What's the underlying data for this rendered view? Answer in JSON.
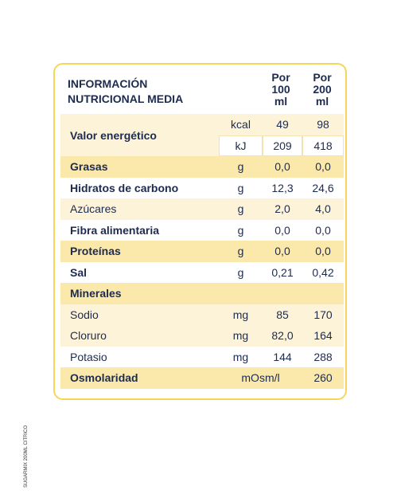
{
  "header": {
    "title": "INFORMACIÓN NUTRICIONAL MEDIA",
    "columns": [
      "Por 100 ml",
      "Por 200 ml"
    ]
  },
  "table": {
    "rows": [
      [
        "Valor energético",
        "kcal",
        "49",
        "98"
      ],
      [
        "kJ",
        "209",
        "418"
      ],
      [
        "Grasas",
        "g",
        "0,0",
        "0,0"
      ],
      [
        "Hidratos de carbono",
        "g",
        "12,3",
        "24,6"
      ],
      [
        "Azúcares",
        "g",
        "2,0",
        "4,0"
      ],
      [
        "Fibra alimentaria",
        "g",
        "0,0",
        "0,0"
      ],
      [
        "Proteínas",
        "g",
        "0,0",
        "0,0"
      ],
      [
        "Sal",
        "g",
        "0,21",
        "0,42"
      ],
      [
        "Minerales"
      ],
      [
        "Sodio",
        "mg",
        "85",
        "170"
      ],
      [
        "Cloruro",
        "mg",
        "82,0",
        "164"
      ],
      [
        "Potasio",
        "mg",
        "144",
        "288"
      ],
      [
        "Osmolaridad",
        "mOsm/l",
        "260"
      ]
    ]
  },
  "footer": {
    "side_text": "SUGARMIX 200ML CITRICO"
  }
}
